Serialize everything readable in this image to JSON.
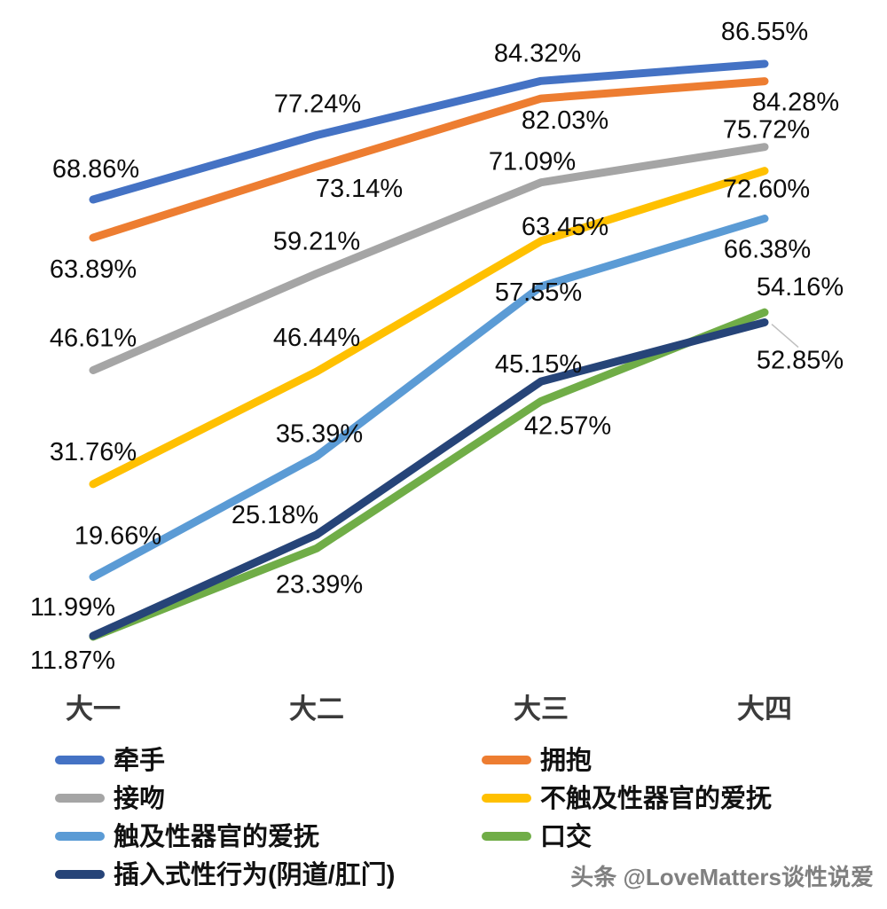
{
  "chart_data": {
    "type": "line",
    "title": "",
    "xlabel": "",
    "ylabel": "",
    "grid": false,
    "axes_visible": false,
    "legend_position": "bottom",
    "value_suffix": "%",
    "ylim": [
      0,
      100
    ],
    "categories": [
      "大一",
      "大二",
      "大三",
      "大四"
    ],
    "series": [
      {
        "name": "牵手",
        "color": "#4472C4",
        "values": [
          68.86,
          77.24,
          84.32,
          86.55
        ],
        "labels": [
          "68.86%",
          "77.24%",
          "84.32%",
          "86.55%"
        ]
      },
      {
        "name": "拥抱",
        "color": "#ED7D31",
        "values": [
          63.89,
          73.14,
          82.03,
          84.28
        ],
        "labels": [
          "63.89%",
          "73.14%",
          "82.03%",
          "84.28%"
        ]
      },
      {
        "name": "接吻",
        "color": "#A5A5A5",
        "values": [
          46.61,
          59.21,
          71.09,
          75.72
        ],
        "labels": [
          "46.61%",
          "59.21%",
          "71.09%",
          "75.72%"
        ]
      },
      {
        "name": "不触及性器官的爱抚",
        "color": "#FFC000",
        "values": [
          31.76,
          46.44,
          63.45,
          72.6
        ],
        "labels": [
          "31.76%",
          "46.44%",
          "63.45%",
          "72.60%"
        ]
      },
      {
        "name": "触及性器官的爱抚",
        "color": "#5B9BD5",
        "values": [
          19.66,
          35.39,
          57.55,
          66.38
        ],
        "labels": [
          "19.66%",
          "35.39%",
          "57.55%",
          "66.38%"
        ]
      },
      {
        "name": "口交",
        "color": "#70AD47",
        "values": [
          11.87,
          23.39,
          42.57,
          54.16
        ],
        "labels": [
          "11.87%",
          "23.39%",
          "42.57%",
          "54.16%"
        ]
      },
      {
        "name": "插入式性行为(阴道/肛门)",
        "color": "#264478",
        "values": [
          11.99,
          25.18,
          45.15,
          52.85
        ],
        "labels": [
          "11.99%",
          "25.18%",
          "45.15%",
          "52.85%"
        ]
      }
    ]
  },
  "watermark": "头条 @LoveMatters谈性说爱"
}
